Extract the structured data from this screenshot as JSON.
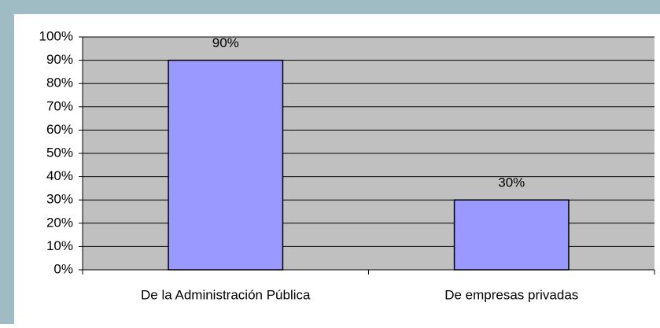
{
  "chart_data": {
    "type": "bar",
    "categories": [
      "De la Administración Pública",
      "De empresas privadas"
    ],
    "values": [
      90,
      30
    ],
    "value_labels": [
      "90%",
      "30%"
    ],
    "color": "#9999ff",
    "ylim": [
      0,
      100
    ],
    "yticks": [
      {
        "value": 0,
        "label": "0%"
      },
      {
        "value": 10,
        "label": "10%"
      },
      {
        "value": 20,
        "label": "20%"
      },
      {
        "value": 30,
        "label": "30%"
      },
      {
        "value": 40,
        "label": "40%"
      },
      {
        "value": 50,
        "label": "50%"
      },
      {
        "value": 60,
        "label": "60%"
      },
      {
        "value": 70,
        "label": "70%"
      },
      {
        "value": 80,
        "label": "80%"
      },
      {
        "value": 90,
        "label": "90%"
      },
      {
        "value": 100,
        "label": "100%"
      }
    ],
    "grid": true
  }
}
